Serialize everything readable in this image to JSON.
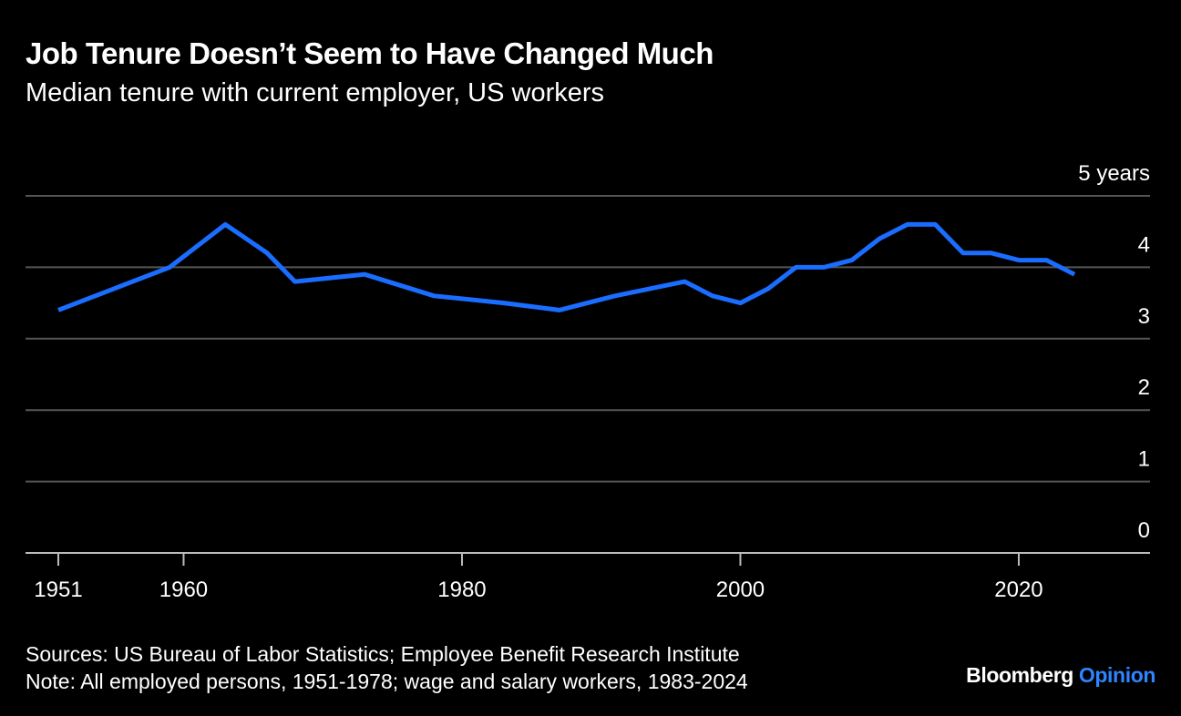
{
  "header": {
    "title": "Job Tenure Doesn’t Seem to Have Changed Much",
    "subtitle": "Median tenure with current employer, US workers"
  },
  "footer": {
    "sources": "Sources: US Bureau of Labor Statistics; Employee Benefit Research Institute",
    "note": "Note: All employed persons, 1951-1978; wage and salary workers, 1983-2024"
  },
  "brand": {
    "name": "Bloomberg",
    "suffix": "Opinion",
    "suffix_color": "#2f84ff"
  },
  "colors": {
    "background": "#000000",
    "line": "#1a6dff",
    "grid": "#555555",
    "text": "#ffffff"
  },
  "chart_data": {
    "type": "line",
    "x_tick_labels": [
      "1951",
      "1960",
      "1980",
      "2000",
      "2020"
    ],
    "x_ticks": [
      1951,
      1960,
      1980,
      2000,
      2020
    ],
    "y_tick_labels": [
      "5 years",
      "4",
      "3",
      "2",
      "1",
      "0"
    ],
    "y_ticks": [
      5,
      4,
      3,
      2,
      1,
      0
    ],
    "xlim": [
      1949,
      2029
    ],
    "ylim": [
      0,
      5
    ],
    "grid": "horizontal",
    "series": [
      {
        "x": [
          1951,
          1955,
          1959,
          1963,
          1966,
          1968,
          1973,
          1978,
          1983,
          1987,
          1991,
          1996,
          1998,
          2000,
          2002,
          2004,
          2006,
          2008,
          2010,
          2012,
          2014,
          2016,
          2018,
          2020,
          2022,
          2024
        ],
        "values": [
          3.4,
          3.7,
          4.0,
          4.6,
          4.2,
          3.8,
          3.9,
          3.6,
          3.5,
          3.4,
          3.6,
          3.8,
          3.6,
          3.5,
          3.7,
          4.0,
          4.0,
          4.1,
          4.4,
          4.6,
          4.6,
          4.2,
          4.2,
          4.1,
          4.1,
          3.9
        ]
      }
    ]
  }
}
